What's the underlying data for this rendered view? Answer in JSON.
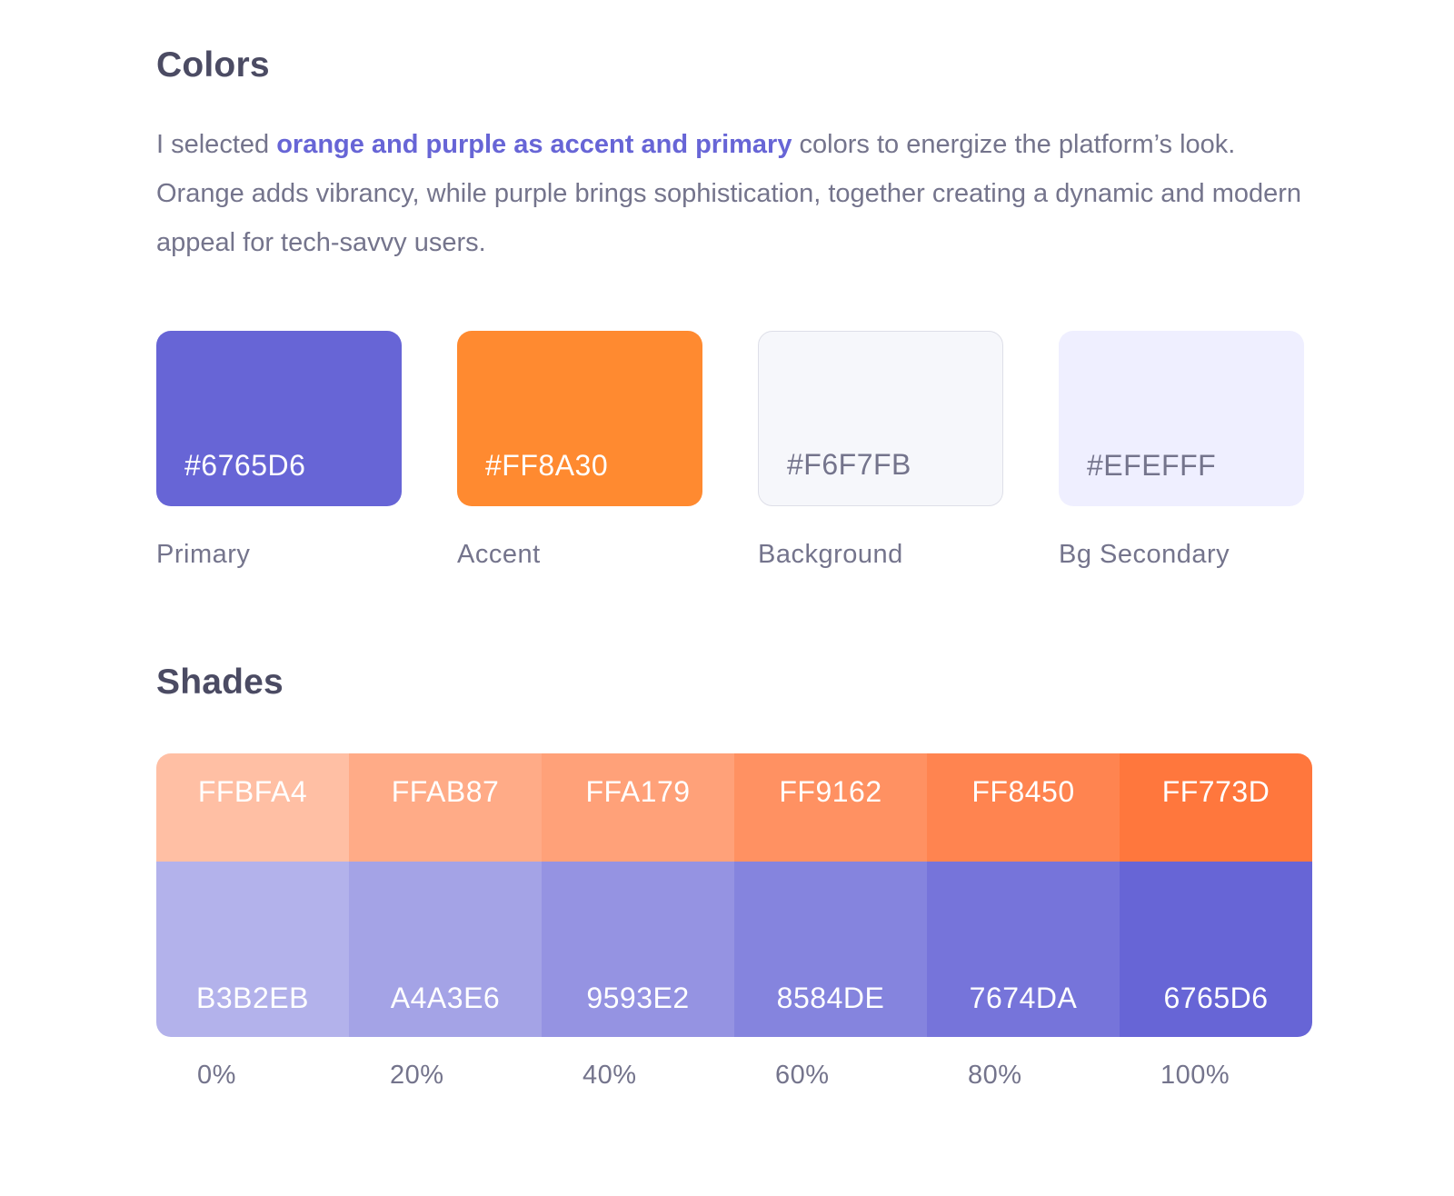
{
  "colors": {
    "title": "Colors",
    "intro_prefix": "I selected ",
    "intro_highlight": "orange and purple as accent and primary",
    "intro_suffix": "  colors to energize the platform’s look. Orange adds vibrancy, while purple brings sophistication, together creating a dynamic and modern appeal for tech-savvy users.",
    "swatches": [
      {
        "hex": "#6765D6",
        "name": "Primary",
        "fill": "#6765D6",
        "text_color": "#ffffff"
      },
      {
        "hex": "#FF8A30",
        "name": "Accent",
        "fill": "#FF8A30",
        "text_color": "#ffffff"
      },
      {
        "hex": "#F6F7FB",
        "name": "Background",
        "fill": "#F6F7FB",
        "text_color": "#74748c"
      },
      {
        "hex": "#EFEFFF",
        "name": "Bg Secondary",
        "fill": "#EFEFFF",
        "text_color": "#74748c"
      }
    ]
  },
  "shades": {
    "title": "Shades",
    "orange": [
      {
        "label": "FFBFA4",
        "fill": "#FFBFA4"
      },
      {
        "label": "FFAB87",
        "fill": "#FFAB87"
      },
      {
        "label": "FFA179",
        "fill": "#FFA179"
      },
      {
        "label": "FF9162",
        "fill": "#FF9162"
      },
      {
        "label": "FF8450",
        "fill": "#FF8450"
      },
      {
        "label": "FF773D",
        "fill": "#FF773D"
      }
    ],
    "purple": [
      {
        "label": "B3B2EB",
        "fill": "#B3B2EB"
      },
      {
        "label": "A4A3E6",
        "fill": "#A4A3E6"
      },
      {
        "label": "9593E2",
        "fill": "#9593E2"
      },
      {
        "label": "8584DE",
        "fill": "#8584DE"
      },
      {
        "label": "7674DA",
        "fill": "#7674DA"
      },
      {
        "label": "6765D6",
        "fill": "#6765D6"
      }
    ],
    "percents": [
      "0%",
      "20%",
      "40%",
      "60%",
      "80%",
      "100%"
    ]
  }
}
